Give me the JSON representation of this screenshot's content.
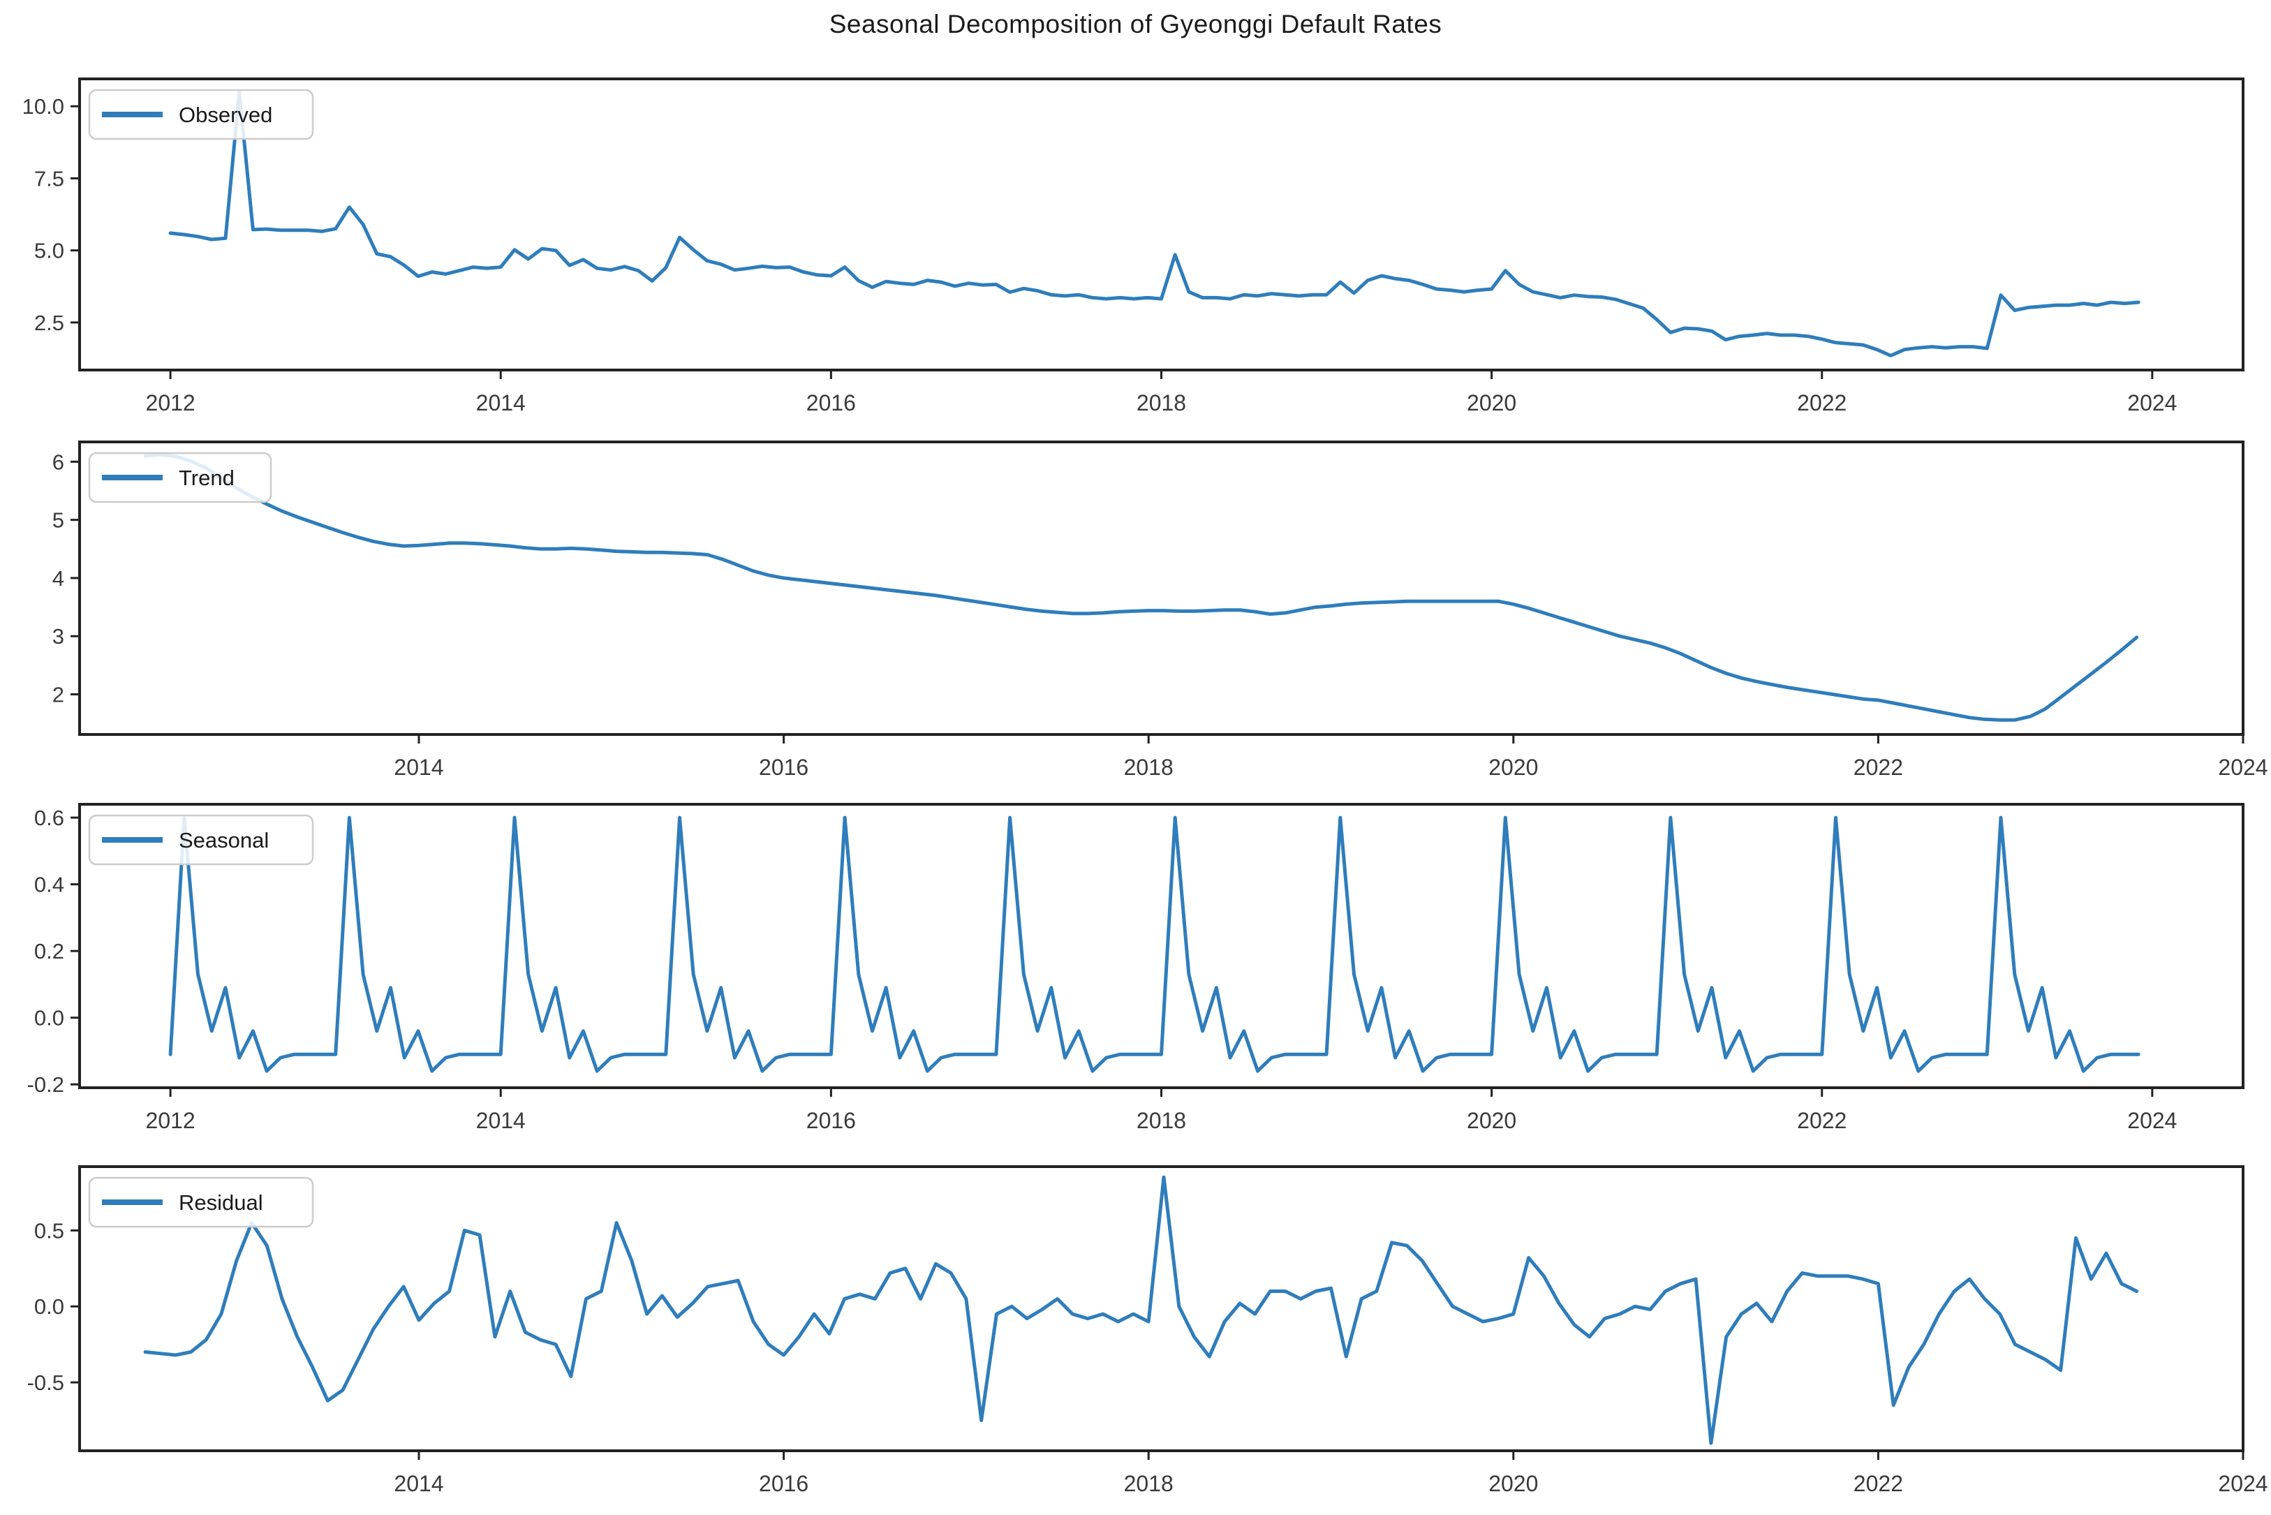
{
  "figure": {
    "title": "Seasonal Decomposition of Gyeonggi Default Rates",
    "background": "#ffffff",
    "line_color": "#2f7dbb",
    "axis_color": "#222222",
    "label_color": "#3a3a3a",
    "legend_border": "#cccccc",
    "legend_fill": "#ffffff"
  },
  "chart_data": [
    {
      "id": "observed",
      "type": "line",
      "legend_label": "Observed",
      "legend_position": "upper left",
      "grid": false,
      "x_start": 2012.0,
      "points_per_year": 12,
      "xlim": [
        2011.45,
        2024.55
      ],
      "ylim": [
        0.85,
        10.95
      ],
      "x_ticks": [
        2012,
        2014,
        2016,
        2018,
        2020,
        2022,
        2024
      ],
      "y_ticks": [
        {
          "v": 2.5,
          "label": "2.5"
        },
        {
          "v": 5.0,
          "label": "5.0"
        },
        {
          "v": 7.5,
          "label": "7.5"
        },
        {
          "v": 10.0,
          "label": "10.0"
        }
      ],
      "values": [
        5.6,
        5.55,
        5.48,
        5.38,
        5.42,
        10.5,
        5.72,
        5.74,
        5.7,
        5.7,
        5.7,
        5.66,
        5.75,
        6.5,
        5.9,
        4.88,
        4.78,
        4.48,
        4.1,
        4.25,
        4.18,
        4.3,
        4.42,
        4.38,
        4.42,
        5.02,
        4.7,
        5.06,
        5.0,
        4.48,
        4.68,
        4.38,
        4.32,
        4.44,
        4.3,
        3.94,
        4.4,
        5.45,
        5.02,
        4.64,
        4.52,
        4.32,
        4.38,
        4.45,
        4.4,
        4.42,
        4.25,
        4.15,
        4.12,
        4.42,
        3.95,
        3.72,
        3.92,
        3.86,
        3.82,
        3.96,
        3.9,
        3.76,
        3.86,
        3.8,
        3.82,
        3.55,
        3.68,
        3.6,
        3.46,
        3.42,
        3.46,
        3.36,
        3.32,
        3.36,
        3.32,
        3.36,
        3.32,
        4.85,
        3.56,
        3.36,
        3.36,
        3.32,
        3.46,
        3.42,
        3.5,
        3.46,
        3.42,
        3.46,
        3.46,
        3.9,
        3.52,
        3.96,
        4.12,
        4.02,
        3.96,
        3.82,
        3.66,
        3.62,
        3.56,
        3.62,
        3.66,
        4.3,
        3.82,
        3.56,
        3.46,
        3.36,
        3.45,
        3.4,
        3.38,
        3.3,
        3.15,
        3.0,
        2.6,
        2.15,
        2.3,
        2.28,
        2.2,
        1.9,
        2.02,
        2.06,
        2.12,
        2.06,
        2.06,
        2.02,
        1.92,
        1.8,
        1.76,
        1.72,
        1.56,
        1.35,
        1.56,
        1.62,
        1.66,
        1.62,
        1.66,
        1.66,
        1.6,
        3.45,
        2.92,
        3.02,
        3.06,
        3.1,
        3.1,
        3.16,
        3.1,
        3.2,
        3.16,
        3.2
      ]
    },
    {
      "id": "trend",
      "type": "line",
      "legend_label": "Trend",
      "legend_position": "upper left",
      "grid": false,
      "x_start": 2012.5,
      "points_per_year": 12,
      "xlim": [
        2012.14,
        2024.0
      ],
      "ylim": [
        1.31,
        6.34
      ],
      "x_ticks": [
        2014,
        2016,
        2018,
        2020,
        2022,
        2024
      ],
      "y_ticks": [
        {
          "v": 2,
          "label": "2"
        },
        {
          "v": 3,
          "label": "3"
        },
        {
          "v": 4,
          "label": "4"
        },
        {
          "v": 5,
          "label": "5"
        },
        {
          "v": 6,
          "label": "6"
        }
      ],
      "values": [
        6.1,
        6.12,
        6.09,
        6.01,
        5.89,
        5.72,
        5.55,
        5.4,
        5.27,
        5.15,
        5.05,
        4.96,
        4.87,
        4.78,
        4.7,
        4.63,
        4.58,
        4.55,
        4.56,
        4.58,
        4.6,
        4.6,
        4.59,
        4.57,
        4.55,
        4.52,
        4.5,
        4.5,
        4.51,
        4.5,
        4.48,
        4.46,
        4.45,
        4.44,
        4.44,
        4.43,
        4.42,
        4.4,
        4.32,
        4.22,
        4.12,
        4.05,
        4.0,
        3.97,
        3.94,
        3.91,
        3.88,
        3.85,
        3.82,
        3.79,
        3.76,
        3.73,
        3.7,
        3.66,
        3.62,
        3.58,
        3.54,
        3.5,
        3.46,
        3.43,
        3.41,
        3.39,
        3.39,
        3.4,
        3.42,
        3.43,
        3.44,
        3.44,
        3.43,
        3.43,
        3.44,
        3.45,
        3.45,
        3.42,
        3.38,
        3.4,
        3.45,
        3.5,
        3.52,
        3.55,
        3.57,
        3.58,
        3.59,
        3.6,
        3.6,
        3.6,
        3.6,
        3.6,
        3.6,
        3.6,
        3.55,
        3.48,
        3.4,
        3.32,
        3.24,
        3.16,
        3.08,
        3.0,
        2.94,
        2.88,
        2.8,
        2.7,
        2.58,
        2.46,
        2.36,
        2.28,
        2.22,
        2.17,
        2.12,
        2.08,
        2.04,
        2.0,
        1.96,
        1.92,
        1.9,
        1.85,
        1.8,
        1.75,
        1.7,
        1.65,
        1.6,
        1.57,
        1.56,
        1.56,
        1.62,
        1.75,
        1.95,
        2.15,
        2.35,
        2.55,
        2.76,
        2.98
      ]
    },
    {
      "id": "seasonal",
      "type": "line",
      "legend_label": "Seasonal",
      "legend_position": "upper left",
      "grid": false,
      "x_start": 2012.0,
      "points_per_year": 12,
      "xlim": [
        2011.45,
        2024.55
      ],
      "ylim": [
        -0.21,
        0.64
      ],
      "x_ticks": [
        2012,
        2014,
        2016,
        2018,
        2020,
        2022,
        2024
      ],
      "y_ticks": [
        {
          "v": -0.2,
          "label": "-0.2"
        },
        {
          "v": 0.0,
          "label": "0.0"
        },
        {
          "v": 0.2,
          "label": "0.2"
        },
        {
          "v": 0.4,
          "label": "0.4"
        },
        {
          "v": 0.6,
          "label": "0.6"
        }
      ],
      "pattern": [
        -0.11,
        0.6,
        0.13,
        -0.04,
        0.09,
        -0.12,
        -0.04,
        -0.16,
        -0.12,
        -0.11,
        -0.11,
        -0.11
      ],
      "repeat": 12
    },
    {
      "id": "residual",
      "type": "line",
      "legend_label": "Residual",
      "legend_position": "upper left",
      "grid": false,
      "x_start": 2012.5,
      "points_per_year": 12,
      "xlim": [
        2012.14,
        2024.0
      ],
      "ylim": [
        -0.95,
        0.92
      ],
      "x_ticks": [
        2014,
        2016,
        2018,
        2020,
        2022,
        2024
      ],
      "y_ticks": [
        {
          "v": -0.5,
          "label": "-0.5"
        },
        {
          "v": 0.0,
          "label": "0.0"
        },
        {
          "v": 0.5,
          "label": "0.5"
        }
      ],
      "values": [
        -0.3,
        -0.31,
        -0.32,
        -0.3,
        -0.22,
        -0.05,
        0.3,
        0.55,
        0.4,
        0.05,
        -0.2,
        -0.4,
        -0.62,
        -0.55,
        -0.35,
        -0.15,
        0.0,
        0.13,
        -0.09,
        0.02,
        0.1,
        0.5,
        0.47,
        -0.2,
        0.1,
        -0.17,
        -0.22,
        -0.25,
        -0.46,
        0.05,
        0.1,
        0.55,
        0.3,
        -0.05,
        0.07,
        -0.07,
        0.02,
        0.13,
        0.15,
        0.17,
        -0.1,
        -0.25,
        -0.32,
        -0.2,
        -0.05,
        -0.18,
        0.05,
        0.08,
        0.05,
        0.22,
        0.25,
        0.05,
        0.28,
        0.22,
        0.05,
        -0.75,
        -0.05,
        0.0,
        -0.08,
        -0.02,
        0.05,
        -0.05,
        -0.08,
        -0.05,
        -0.1,
        -0.05,
        -0.1,
        0.85,
        0.0,
        -0.2,
        -0.33,
        -0.1,
        0.02,
        -0.05,
        0.1,
        0.1,
        0.05,
        0.1,
        0.12,
        -0.33,
        0.05,
        0.1,
        0.42,
        0.4,
        0.3,
        0.15,
        0.0,
        -0.05,
        -0.1,
        -0.08,
        -0.05,
        0.32,
        0.2,
        0.02,
        -0.12,
        -0.2,
        -0.08,
        -0.05,
        0.0,
        -0.02,
        0.1,
        0.15,
        0.18,
        -0.9,
        -0.2,
        -0.05,
        0.02,
        -0.1,
        0.1,
        0.22,
        0.2,
        0.2,
        0.2,
        0.18,
        0.15,
        -0.65,
        -0.4,
        -0.25,
        -0.05,
        0.1,
        0.18,
        0.05,
        -0.05,
        -0.25,
        -0.3,
        -0.35,
        -0.42,
        0.45,
        0.18,
        0.35,
        0.15,
        0.1
      ]
    }
  ]
}
